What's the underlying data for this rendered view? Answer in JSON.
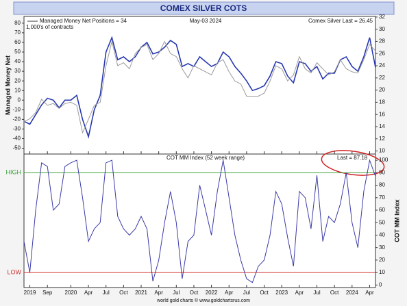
{
  "chart_data": [
    {
      "type": "line",
      "title": "COMEX SILVER COTS",
      "annotations": [
        "Managed Money Net Positions = 34",
        "May-03  2024",
        "Comex Silver Last = 26.45",
        "1,000's of contracts"
      ],
      "y_label": "Managed Money Net",
      "xlim": [
        "2019-05",
        "2024-05"
      ],
      "x": [
        "2019-05",
        "2019-06",
        "2019-07",
        "2019-08",
        "2019-09",
        "2019-10",
        "2019-11",
        "2019-12",
        "2020-01",
        "2020-02",
        "2020-03",
        "2020-04",
        "2020-05",
        "2020-06",
        "2020-07",
        "2020-08",
        "2020-09",
        "2020-10",
        "2020-11",
        "2020-12",
        "2021-01",
        "2021-02",
        "2021-03",
        "2021-04",
        "2021-05",
        "2021-06",
        "2021-07",
        "2021-08",
        "2021-09",
        "2021-10",
        "2021-11",
        "2021-12",
        "2022-01",
        "2022-02",
        "2022-03",
        "2022-04",
        "2022-05",
        "2022-06",
        "2022-07",
        "2022-08",
        "2022-09",
        "2022-10",
        "2022-11",
        "2022-12",
        "2023-01",
        "2023-02",
        "2023-03",
        "2023-04",
        "2023-05",
        "2023-06",
        "2023-07",
        "2023-08",
        "2023-09",
        "2023-10",
        "2023-11",
        "2023-12",
        "2024-01",
        "2024-02",
        "2024-03",
        "2024-04",
        "2024-05"
      ],
      "series": [
        {
          "color": "#2838b0",
          "axis": "y",
          "values": [
            -22,
            -25,
            -15,
            -5,
            2,
            0,
            -8,
            0,
            0,
            5,
            -20,
            -38,
            -10,
            5,
            50,
            65,
            42,
            45,
            40,
            45,
            55,
            60,
            48,
            50,
            55,
            62,
            58,
            35,
            38,
            35,
            45,
            40,
            35,
            38,
            50,
            45,
            35,
            28,
            20,
            10,
            12,
            15,
            25,
            40,
            38,
            25,
            18,
            40,
            38,
            30,
            35,
            22,
            28,
            28,
            42,
            45,
            35,
            30,
            45,
            65,
            34
          ]
        },
        {
          "color": "#9a9a9a",
          "axis": "y2",
          "values": [
            14.8,
            15.3,
            16.3,
            18.5,
            17.5,
            17.8,
            17.0,
            17.8,
            18,
            17.5,
            13,
            15.2,
            17.5,
            18,
            24,
            28,
            24,
            24.5,
            23.5,
            26,
            27,
            27.5,
            25,
            26,
            28,
            26,
            25.5,
            23.5,
            22,
            24,
            23.5,
            23,
            22.5,
            24.5,
            25,
            23,
            21.5,
            21,
            19,
            19,
            19,
            19.5,
            21.5,
            24,
            23.5,
            21.5,
            22.5,
            25.5,
            23.5,
            22.8,
            24.5,
            23.5,
            22.5,
            23,
            25,
            23.5,
            23,
            22.8,
            25,
            27.5,
            26.45
          ]
        }
      ],
      "ylim": [
        -56,
        87
      ],
      "yticks": [
        -50,
        -40,
        -30,
        -20,
        -10,
        0,
        10,
        20,
        30,
        40,
        50,
        60,
        70,
        80
      ],
      "y2lim": [
        9.5,
        32.1
      ],
      "y2ticks": [
        10,
        12,
        14,
        16,
        18,
        20,
        22,
        24,
        26,
        28,
        30,
        32
      ]
    },
    {
      "type": "line",
      "annotations": [
        "COT MM Index (52 week range)",
        "Last = 87.18"
      ],
      "y_label": "COT MM Index",
      "footer": "world gold charts ® www.goldchartsrus.com",
      "xlim": [
        "2019-05",
        "2024-05"
      ],
      "x": [
        "2019-05",
        "2019-06",
        "2019-07",
        "2019-08",
        "2019-09",
        "2019-10",
        "2019-11",
        "2019-12",
        "2020-01",
        "2020-02",
        "2020-03",
        "2020-04",
        "2020-05",
        "2020-06",
        "2020-07",
        "2020-08",
        "2020-09",
        "2020-10",
        "2020-11",
        "2020-12",
        "2021-01",
        "2021-02",
        "2021-03",
        "2021-04",
        "2021-05",
        "2021-06",
        "2021-07",
        "2021-08",
        "2021-09",
        "2021-10",
        "2021-11",
        "2021-12",
        "2022-01",
        "2022-02",
        "2022-03",
        "2022-04",
        "2022-05",
        "2022-06",
        "2022-07",
        "2022-08",
        "2022-09",
        "2022-10",
        "2022-11",
        "2022-12",
        "2023-01",
        "2023-02",
        "2023-03",
        "2023-04",
        "2023-05",
        "2023-06",
        "2023-07",
        "2023-08",
        "2023-09",
        "2023-10",
        "2023-11",
        "2023-12",
        "2024-01",
        "2024-02",
        "2024-03",
        "2024-04",
        "2024-05"
      ],
      "xticks": [
        {
          "value": "2019-06",
          "label": "2019"
        },
        {
          "value": "2019-09",
          "label": "Sep"
        },
        {
          "value": "2020-01",
          "label": "2020"
        },
        {
          "value": "2020-04",
          "label": "Apr"
        },
        {
          "value": "2020-07",
          "label": "Jul"
        },
        {
          "value": "2020-10",
          "label": "Oct"
        },
        {
          "value": "2021-01",
          "label": "2021"
        },
        {
          "value": "2021-04",
          "label": "Apr"
        },
        {
          "value": "2021-07",
          "label": "Jul"
        },
        {
          "value": "2021-10",
          "label": "Oct"
        },
        {
          "value": "2022-01",
          "label": "2022"
        },
        {
          "value": "2022-04",
          "label": "Apr"
        },
        {
          "value": "2022-07",
          "label": "Jul"
        },
        {
          "value": "2022-10",
          "label": "Oct"
        },
        {
          "value": "2023-01",
          "label": "2023"
        },
        {
          "value": "2023-04",
          "label": "Apr"
        },
        {
          "value": "2023-07",
          "label": "Jul"
        },
        {
          "value": "2023-10",
          "label": "Oct"
        },
        {
          "value": "2024-01",
          "label": "2024"
        },
        {
          "value": "2024-04",
          "label": "Apr"
        }
      ],
      "series": [
        {
          "color": "#3a3aa8",
          "values": [
            35,
            10,
            60,
            98,
            95,
            60,
            65,
            95,
            98,
            100,
            70,
            35,
            45,
            50,
            98,
            100,
            55,
            45,
            40,
            45,
            55,
            45,
            3,
            20,
            50,
            75,
            50,
            5,
            35,
            40,
            80,
            60,
            40,
            75,
            100,
            70,
            40,
            20,
            5,
            2,
            15,
            20,
            40,
            75,
            65,
            38,
            15,
            75,
            70,
            45,
            88,
            35,
            55,
            50,
            65,
            90,
            50,
            30,
            75,
            100,
            87.18
          ]
        }
      ],
      "ylim": [
        -2,
        105
      ],
      "yticks": [
        0,
        10,
        20,
        30,
        40,
        50,
        60,
        70,
        80,
        90,
        100
      ],
      "yaxis_side": "right",
      "reference_lines": [
        {
          "value": 90,
          "label": "HIGH",
          "color": "#3aa03a"
        },
        {
          "value": 10,
          "label": "LOW",
          "color": "#d03030"
        }
      ]
    }
  ]
}
